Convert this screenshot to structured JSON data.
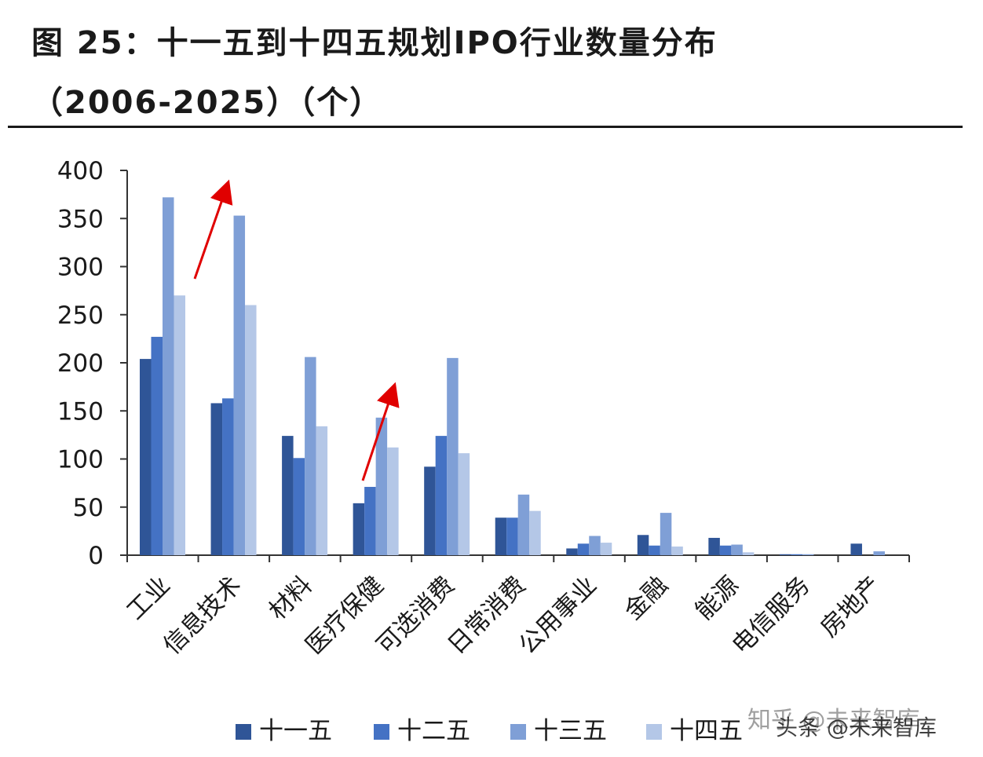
{
  "title": {
    "line1": "图  25：十一五到十四五规划IPO行业数量分布",
    "line2": "（2006-2025）（个）"
  },
  "chart_data": {
    "type": "bar",
    "categories": [
      "工业",
      "信息技术",
      "材料",
      "医疗保健",
      "可选消费",
      "日常消费",
      "公用事业",
      "金融",
      "能源",
      "电信服务",
      "房地产"
    ],
    "series": [
      {
        "name": "十一五",
        "color": "#2f5597",
        "values": [
          204,
          158,
          124,
          54,
          92,
          39,
          7,
          21,
          18,
          1,
          12
        ]
      },
      {
        "name": "十二五",
        "color": "#4472c4",
        "values": [
          227,
          163,
          101,
          71,
          124,
          39,
          12,
          10,
          10,
          1,
          0
        ]
      },
      {
        "name": "十三五",
        "color": "#7f9fd6",
        "values": [
          372,
          353,
          206,
          143,
          205,
          63,
          20,
          44,
          11,
          1,
          4
        ]
      },
      {
        "name": "十四五",
        "color": "#b4c7e7",
        "values": [
          270,
          260,
          134,
          112,
          106,
          46,
          13,
          9,
          3,
          0,
          0
        ]
      }
    ],
    "ylim": [
      0,
      400
    ],
    "yticks": [
      "0",
      "50",
      "100",
      "150",
      "200",
      "250",
      "300",
      "350",
      "400"
    ],
    "xlabel": "",
    "ylabel": "",
    "legend_position": "bottom",
    "annotations": [
      "red-arrow-up over 工业 / 信息技术",
      "red-arrow-up over 医疗保健"
    ]
  },
  "watermark": {
    "text1": "知乎 @未来智库",
    "text2": "头条 @未来智库"
  }
}
